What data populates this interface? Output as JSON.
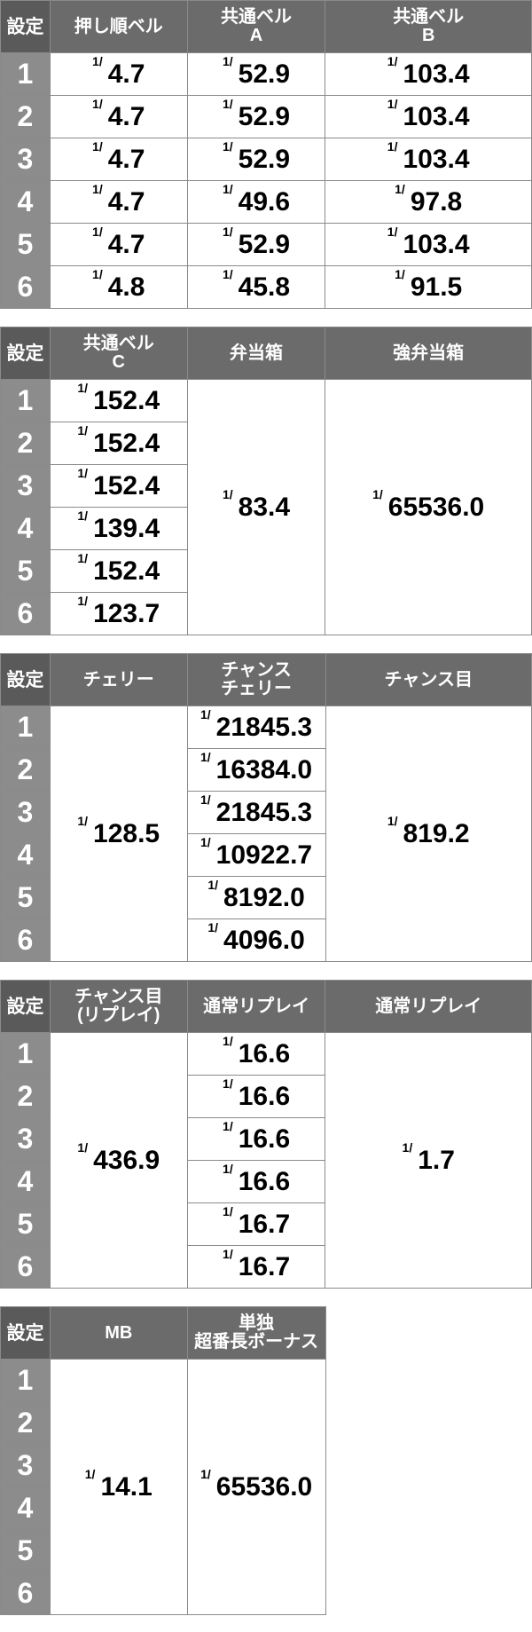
{
  "settings_label": "設定",
  "settings": [
    "1",
    "2",
    "3",
    "4",
    "5",
    "6"
  ],
  "fraction_prefix": "1/",
  "tables": [
    {
      "columns": [
        {
          "header": "押し順ベル",
          "values": [
            "4.7",
            "4.7",
            "4.7",
            "4.7",
            "4.7",
            "4.8"
          ]
        },
        {
          "header": "共通ベル\nA",
          "values": [
            "52.9",
            "52.9",
            "52.9",
            "49.6",
            "52.9",
            "45.8"
          ]
        },
        {
          "header": "共通ベル\nB",
          "values": [
            "103.4",
            "103.4",
            "103.4",
            "97.8",
            "103.4",
            "91.5"
          ]
        }
      ]
    },
    {
      "columns": [
        {
          "header": "共通ベル\nC",
          "values": [
            "152.4",
            "152.4",
            "152.4",
            "139.4",
            "152.4",
            "123.7"
          ]
        },
        {
          "header": "弁当箱",
          "merged": "83.4"
        },
        {
          "header": "強弁当箱",
          "merged": "65536.0"
        }
      ]
    },
    {
      "columns": [
        {
          "header": "チェリー",
          "merged": "128.5"
        },
        {
          "header": "チャンス\nチェリー",
          "values": [
            "21845.3",
            "16384.0",
            "21845.3",
            "10922.7",
            "8192.0",
            "4096.0"
          ]
        },
        {
          "header": "チャンス目",
          "merged": "819.2"
        }
      ]
    },
    {
      "columns": [
        {
          "header": "チャンス目\n(リプレイ)",
          "merged": "436.9"
        },
        {
          "header": "通常リプレイ",
          "values": [
            "16.6",
            "16.6",
            "16.6",
            "16.6",
            "16.7",
            "16.7"
          ]
        },
        {
          "header": "通常リプレイ",
          "merged": "1.7"
        }
      ]
    },
    {
      "columns": [
        {
          "header": "MB",
          "merged": "14.1"
        },
        {
          "header": "単独\n超番長ボーナス",
          "merged": "65536.0"
        }
      ]
    }
  ]
}
